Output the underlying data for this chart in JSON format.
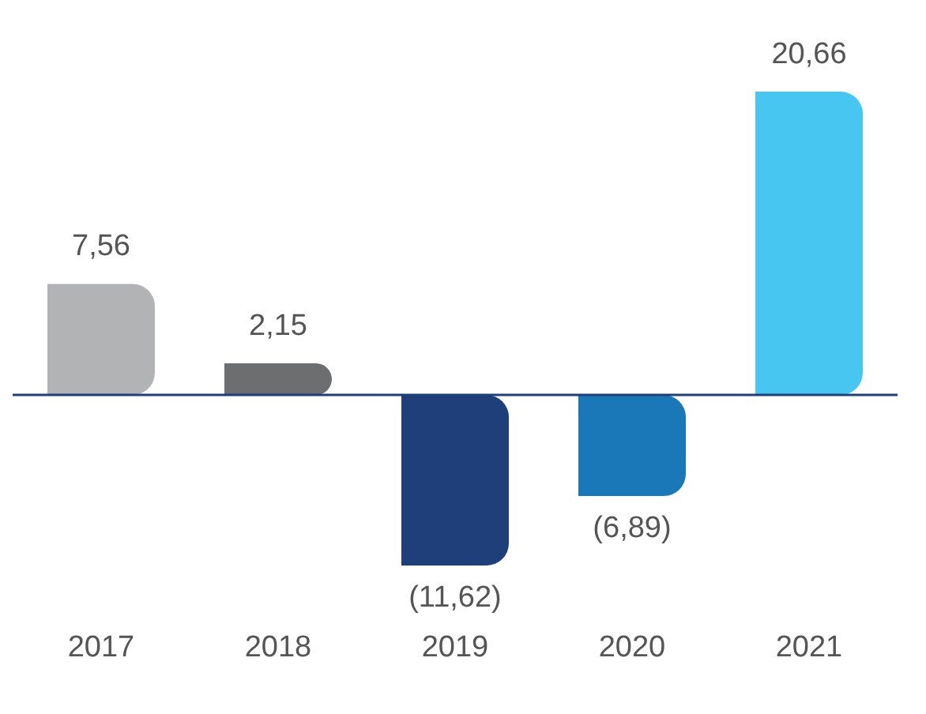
{
  "chart_data": {
    "type": "bar",
    "categories": [
      "2017",
      "2018",
      "2019",
      "2020",
      "2021"
    ],
    "values": [
      7.56,
      2.15,
      -11.62,
      -6.89,
      20.66
    ],
    "colors": [
      "#b1b3b5",
      "#6d6e70",
      "#1f3f7a",
      "#1b78b8",
      "#48c6f2"
    ],
    "value_labels": [
      "7,56",
      "2,15",
      "(11,62)",
      "(6,89)",
      "20,66"
    ],
    "ref_lines": [
      {
        "axis": "y",
        "value": 0,
        "color": "#1f3f7a"
      }
    ],
    "grid": false,
    "legend": false
  }
}
